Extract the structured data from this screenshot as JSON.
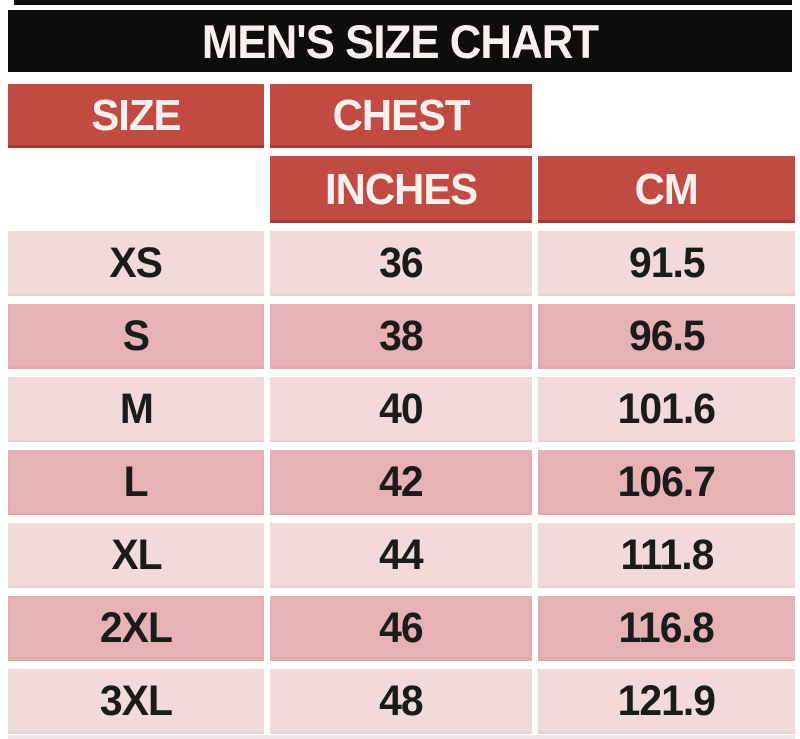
{
  "title": "MEN'S SIZE CHART",
  "headers": {
    "size": "SIZE",
    "chest": "CHEST",
    "inches": "INCHES",
    "cm": "CM"
  },
  "rows": [
    {
      "size": "XS",
      "inches": "36",
      "cm": "91.5"
    },
    {
      "size": "S",
      "inches": "38",
      "cm": "96.5"
    },
    {
      "size": "M",
      "inches": "40",
      "cm": "101.6"
    },
    {
      "size": "L",
      "inches": "42",
      "cm": "106.7"
    },
    {
      "size": "XL",
      "inches": "44",
      "cm": "111.8"
    },
    {
      "size": "2XL",
      "inches": "46",
      "cm": "116.8"
    },
    {
      "size": "3XL",
      "inches": "48",
      "cm": "121.9"
    }
  ],
  "colors": {
    "title_bar": "#0d0d0d",
    "header_red": "#c14a43",
    "row_light": "#f2dadb",
    "row_dark": "#e7b2b4",
    "cell_text": "#1b1b1b",
    "header_text": "#f7f0ec",
    "page_bg": "#ffffff"
  }
}
